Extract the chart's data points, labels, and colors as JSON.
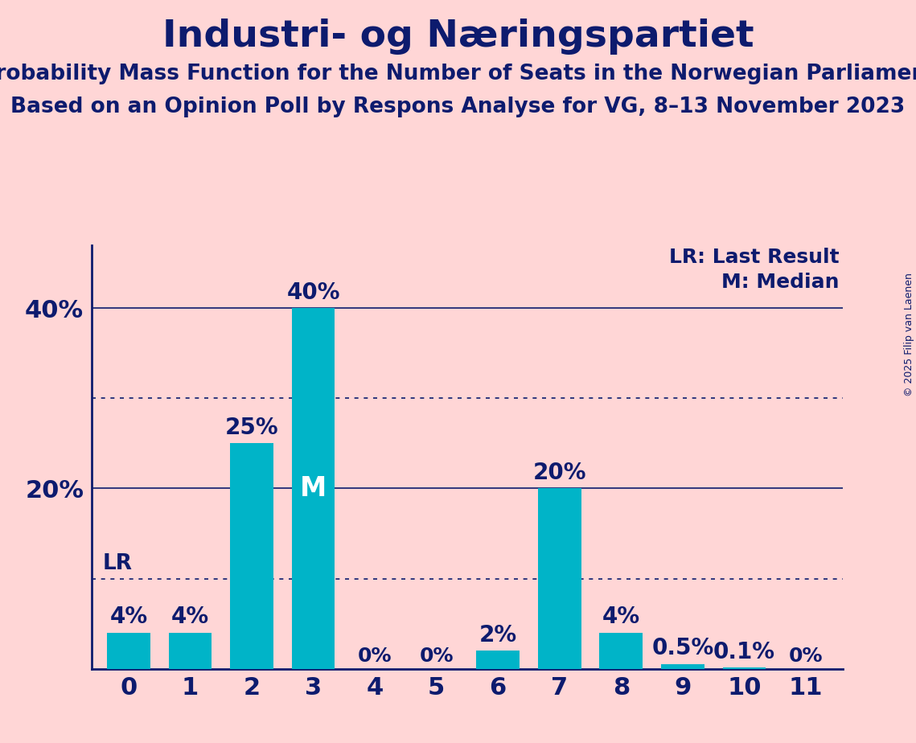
{
  "title": "Industri- og Næringspartiet",
  "subtitle1": "Probability Mass Function for the Number of Seats in the Norwegian Parliament",
  "subtitle2": "Based on an Opinion Poll by Respons Analyse for VG, 8–13 November 2023",
  "copyright": "© 2025 Filip van Laenen",
  "categories": [
    0,
    1,
    2,
    3,
    4,
    5,
    6,
    7,
    8,
    9,
    10,
    11
  ],
  "values": [
    0.04,
    0.04,
    0.25,
    0.4,
    0.0,
    0.0,
    0.02,
    0.2,
    0.04,
    0.005,
    0.001,
    0.0
  ],
  "bar_labels": [
    "4%",
    "4%",
    "25%",
    "40%",
    "0%",
    "0%",
    "2%",
    "20%",
    "4%",
    "0.5%",
    "0.1%",
    "0%"
  ],
  "bar_color": "#00B4C8",
  "bg_color": "#FFD6D6",
  "text_color": "#0D1B6E",
  "title_fontsize": 34,
  "subtitle_fontsize": 19,
  "ylim": [
    0,
    0.47
  ],
  "median_bar": 3,
  "median_label": "M",
  "lr_value": 0.04,
  "lr_label": "LR",
  "dotted_line1": 0.1,
  "dotted_line2": 0.3,
  "legend_lr": "LR: Last Result",
  "legend_m": "M: Median"
}
